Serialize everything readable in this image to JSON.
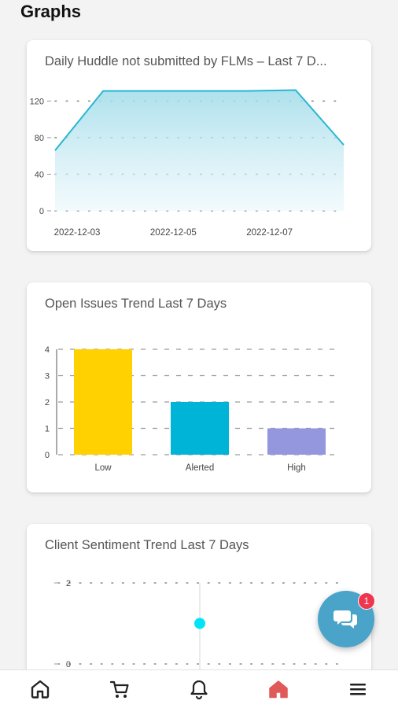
{
  "page": {
    "title": "Graphs"
  },
  "colors": {
    "line": "#29b6d1",
    "area_top": "#9fdbe9",
    "area_bottom": "#e9f7fb",
    "bar_low": "#ffd100",
    "bar_alerted": "#00b4d8",
    "bar_high": "#9496de",
    "point": "#00e5f5",
    "fab": "#4aa3c9",
    "badge": "#f0354f",
    "active_nav": "#e05a5a"
  },
  "cards": [
    {
      "title": "Daily Huddle not submitted by FLMs – Last 7 D..."
    },
    {
      "title": "Open Issues Trend Last 7 Days"
    },
    {
      "title": "Client Sentiment Trend Last 7 Days"
    }
  ],
  "chart_data": [
    {
      "type": "area",
      "title": "Daily Huddle not submitted by FLMs – Last 7 D...",
      "x": [
        "2022-12-03",
        "2022-12-04",
        "2022-12-05",
        "2022-12-06",
        "2022-12-07",
        "2022-12-08",
        "2022-12-09"
      ],
      "x_tick_labels": [
        "2022-12-03",
        "2022-12-05",
        "2022-12-07"
      ],
      "values": [
        66,
        131,
        131,
        131,
        131,
        132,
        72
      ],
      "y_ticks": [
        0,
        40,
        80,
        120
      ],
      "ylim": [
        0,
        135
      ],
      "grid": true
    },
    {
      "type": "bar",
      "title": "Open Issues Trend Last 7 Days",
      "categories": [
        "Low",
        "Alerted",
        "High"
      ],
      "values": [
        4,
        2,
        1
      ],
      "y_ticks": [
        0,
        1,
        2,
        3,
        4
      ],
      "ylim": [
        0,
        4
      ],
      "grid": true
    },
    {
      "type": "scatter",
      "title": "Client Sentiment Trend Last 7 Days",
      "points": [
        {
          "x": 0,
          "y": 1
        }
      ],
      "y_ticks": [
        0,
        2
      ],
      "ylim": [
        0,
        2
      ],
      "grid": true
    }
  ],
  "fab": {
    "badge_count": "1",
    "icon": "chat-bubbles-icon"
  },
  "nav": [
    {
      "icon": "home-outline-icon"
    },
    {
      "icon": "cart-icon"
    },
    {
      "icon": "bell-icon"
    },
    {
      "icon": "home-filled-icon",
      "active": true
    },
    {
      "icon": "menu-icon"
    }
  ]
}
